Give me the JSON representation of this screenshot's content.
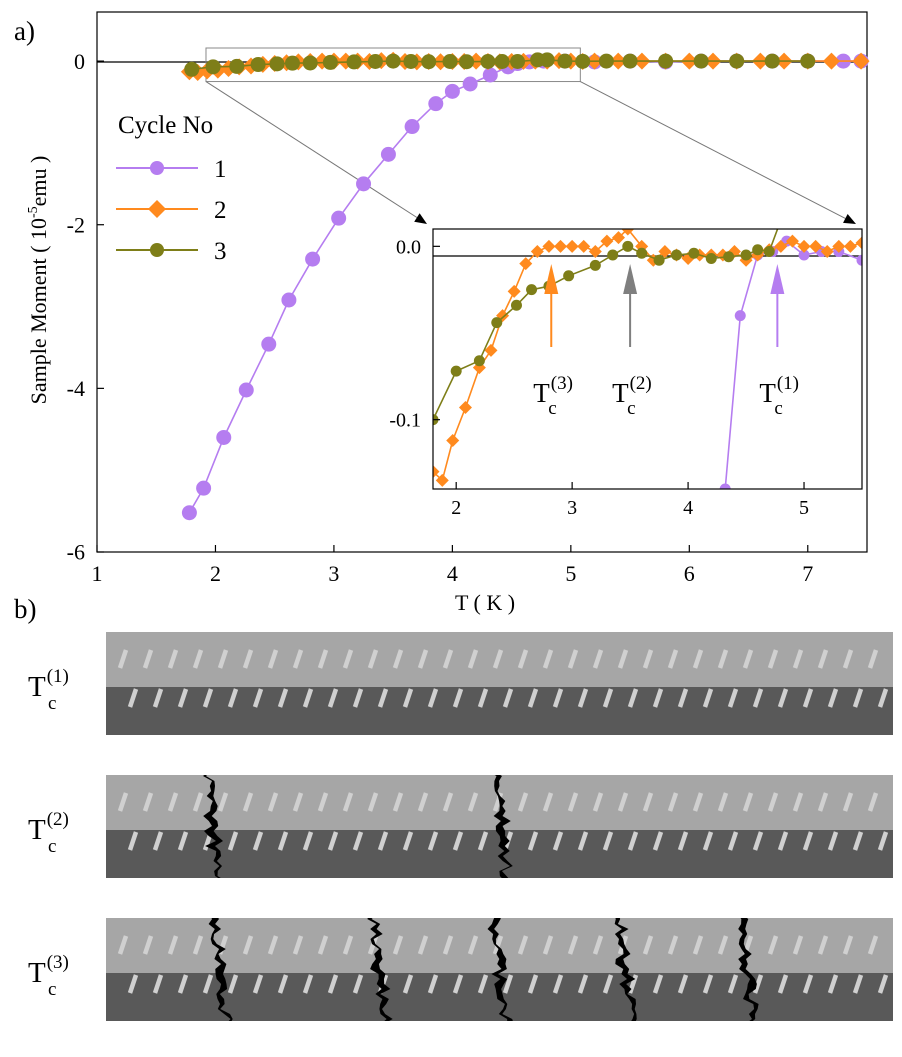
{
  "panel_labels": {
    "a": "a)",
    "b": "b)"
  },
  "series_colors": {
    "cycle_1": "#b57df0",
    "cycle_2": "#ff8a1e",
    "cycle_3": "#7e7e18"
  },
  "chart_data": [
    {
      "type": "line",
      "panel": "a",
      "xlabel": "T ( K )",
      "ylabel": "Sample  Moment   ( 10",
      "ylabel_exponent": "-5",
      "ylabel_unit": "emu )",
      "xlim": [
        1,
        7.5
      ],
      "ylim": [
        -6,
        0.6
      ],
      "x_ticks": [
        1,
        2,
        3,
        4,
        5,
        6,
        7
      ],
      "y_ticks": [
        0,
        -2,
        -4,
        -6
      ],
      "grid": false,
      "legend_title": "Cycle No",
      "legend_position": "left",
      "series": [
        {
          "name": "1",
          "marker": "circle",
          "x": [
            1.78,
            1.9,
            2.07,
            2.26,
            2.45,
            2.62,
            2.82,
            3.04,
            3.25,
            3.46,
            3.66,
            3.86,
            4.0,
            4.15,
            4.32,
            4.47,
            4.55,
            4.65,
            4.77,
            4.95,
            5.2,
            5.5,
            5.8,
            6.1,
            6.4,
            6.7,
            7.0,
            7.3,
            7.45
          ],
          "y": [
            -5.52,
            -5.22,
            -4.6,
            -4.02,
            -3.46,
            -2.92,
            -2.42,
            -1.92,
            -1.5,
            -1.14,
            -0.8,
            -0.52,
            -0.37,
            -0.28,
            -0.17,
            -0.07,
            -0.03,
            -0.01,
            0.0,
            0.0,
            -0.01,
            0.0,
            -0.01,
            0.0,
            0.0,
            0.0,
            0.0,
            0.0,
            0.0
          ]
        },
        {
          "name": "2",
          "marker": "diamond",
          "x": [
            1.78,
            1.85,
            1.93,
            2.02,
            2.11,
            2.2,
            2.3,
            2.4,
            2.5,
            2.6,
            2.7,
            2.8,
            2.9,
            3.0,
            3.1,
            3.2,
            3.3,
            3.4,
            3.5,
            3.6,
            3.7,
            3.8,
            3.9,
            4.0,
            4.1,
            4.2,
            4.3,
            4.4,
            4.5,
            4.6,
            4.7,
            4.8,
            4.9,
            5.0,
            5.1,
            5.2,
            5.4,
            5.6,
            5.8,
            6.0,
            6.2,
            6.4,
            6.6,
            6.8,
            7.0,
            7.2,
            7.45
          ],
          "y": [
            -0.13,
            -0.14,
            -0.12,
            -0.11,
            -0.09,
            -0.07,
            -0.06,
            -0.04,
            -0.03,
            -0.02,
            -0.01,
            -0.005,
            0.0,
            0.0,
            0.0,
            0.0,
            -0.005,
            0.005,
            0.01,
            -0.005,
            -0.01,
            -0.005,
            -0.008,
            -0.005,
            -0.005,
            0.0,
            -0.005,
            -0.01,
            -0.005,
            -0.003,
            0.0,
            0.0,
            0.005,
            0.0,
            -0.005,
            0.0,
            0.0,
            0.0,
            0.0,
            0.0,
            0.0,
            0.0,
            0.0,
            0.0,
            0.0,
            0.0,
            0.0
          ]
        },
        {
          "name": "3",
          "marker": "circle",
          "x": [
            1.8,
            1.98,
            2.18,
            2.36,
            2.52,
            2.65,
            2.8,
            2.97,
            3.17,
            3.35,
            3.5,
            3.65,
            3.8,
            3.98,
            4.12,
            4.3,
            4.42,
            4.55,
            4.72,
            4.8,
            4.95,
            5.1,
            5.3,
            5.5,
            5.8,
            6.1,
            6.4,
            6.7,
            7.0
          ],
          "y": [
            -0.1,
            -0.07,
            -0.065,
            -0.042,
            -0.034,
            -0.025,
            -0.023,
            -0.016,
            -0.01,
            -0.005,
            0.0,
            -0.005,
            -0.008,
            -0.005,
            -0.008,
            -0.005,
            -0.005,
            -0.005,
            0.015,
            0.015,
            0.0,
            -0.003,
            0.0,
            0.0,
            0.0,
            0.0,
            0.0,
            0.0,
            0.0
          ]
        }
      ],
      "zoom_box": {
        "x": [
          1.92,
          5.08
        ],
        "y": [
          -0.25,
          0.16
        ]
      }
    },
    {
      "type": "line",
      "panel": "a-inset",
      "xlim": [
        1.8,
        5.5
      ],
      "ylim": [
        -0.14,
        0.01
      ],
      "x_ticks": [
        2,
        3,
        4,
        5
      ],
      "y_ticks": [
        0.0,
        -0.1
      ],
      "y_tick_labels": [
        "0.0",
        "-0.1"
      ],
      "grid": false,
      "series": [
        {
          "name": "1",
          "marker": "circle",
          "x": [
            4.32,
            4.45,
            4.6,
            4.73,
            4.85,
            5.0,
            5.15,
            5.3,
            5.5
          ],
          "y": [
            -0.14,
            -0.04,
            -0.005,
            -0.003,
            0.003,
            -0.005,
            -0.003,
            -0.003,
            -0.008
          ]
        },
        {
          "name": "2",
          "marker": "diamond",
          "x": [
            1.8,
            1.88,
            1.97,
            2.08,
            2.2,
            2.3,
            2.4,
            2.5,
            2.6,
            2.7,
            2.8,
            2.9,
            3.0,
            3.1,
            3.2,
            3.3,
            3.4,
            3.48,
            3.6,
            3.7,
            3.8,
            3.9,
            4.0,
            4.1,
            4.2,
            4.3,
            4.4,
            4.5,
            4.6,
            4.7,
            4.8,
            4.9,
            5.0,
            5.1,
            5.2,
            5.3,
            5.4,
            5.5
          ],
          "y": [
            -0.13,
            -0.135,
            -0.112,
            -0.093,
            -0.07,
            -0.06,
            -0.04,
            -0.026,
            -0.01,
            -0.003,
            0.0,
            0.0,
            0.0,
            0.0,
            -0.003,
            0.003,
            0.005,
            0.01,
            0.0,
            -0.008,
            -0.003,
            -0.005,
            -0.007,
            -0.005,
            -0.005,
            -0.005,
            -0.003,
            -0.008,
            -0.005,
            -0.002,
            0.0,
            0.003,
            0.0,
            0.0,
            -0.003,
            0.0,
            0.0,
            0.002
          ]
        },
        {
          "name": "3",
          "marker": "circle",
          "x": [
            1.8,
            2.0,
            2.2,
            2.35,
            2.52,
            2.65,
            2.8,
            2.97,
            3.2,
            3.35,
            3.48,
            3.6,
            3.75,
            3.9,
            4.05,
            4.2,
            4.35,
            4.5,
            4.6,
            4.7,
            4.8,
            4.92
          ],
          "y": [
            -0.1,
            -0.072,
            -0.066,
            -0.044,
            -0.034,
            -0.025,
            -0.023,
            -0.017,
            -0.011,
            -0.005,
            0.0,
            -0.004,
            -0.008,
            -0.005,
            -0.004,
            -0.007,
            -0.006,
            -0.005,
            -0.002,
            -0.003,
            0.015,
            0.016
          ]
        }
      ],
      "annotations": [
        {
          "base": "T",
          "sub": "c",
          "sup": "(3)",
          "x": 2.82,
          "color": "cycle_2"
        },
        {
          "base": "T",
          "sub": "c",
          "sup": "(2)",
          "x": 3.5,
          "color": "gray"
        },
        {
          "base": "T",
          "sub": "c",
          "sup": "(1)",
          "x": 4.77,
          "color": "cycle_1"
        }
      ]
    }
  ],
  "panel_b": {
    "rows": [
      {
        "label_base": "T",
        "label_sub": "c",
        "label_sup": "(1)",
        "cracks": 0
      },
      {
        "label_base": "T",
        "label_sub": "c",
        "label_sup": "(2)",
        "cracks": 2
      },
      {
        "label_base": "T",
        "label_sub": "c",
        "label_sup": "(3)",
        "cracks": 5
      }
    ],
    "colors": {
      "top_layer": "#a6a6a6",
      "bottom_layer": "#595959",
      "stripe": "#d0d0d0",
      "crack": "#000000"
    }
  }
}
